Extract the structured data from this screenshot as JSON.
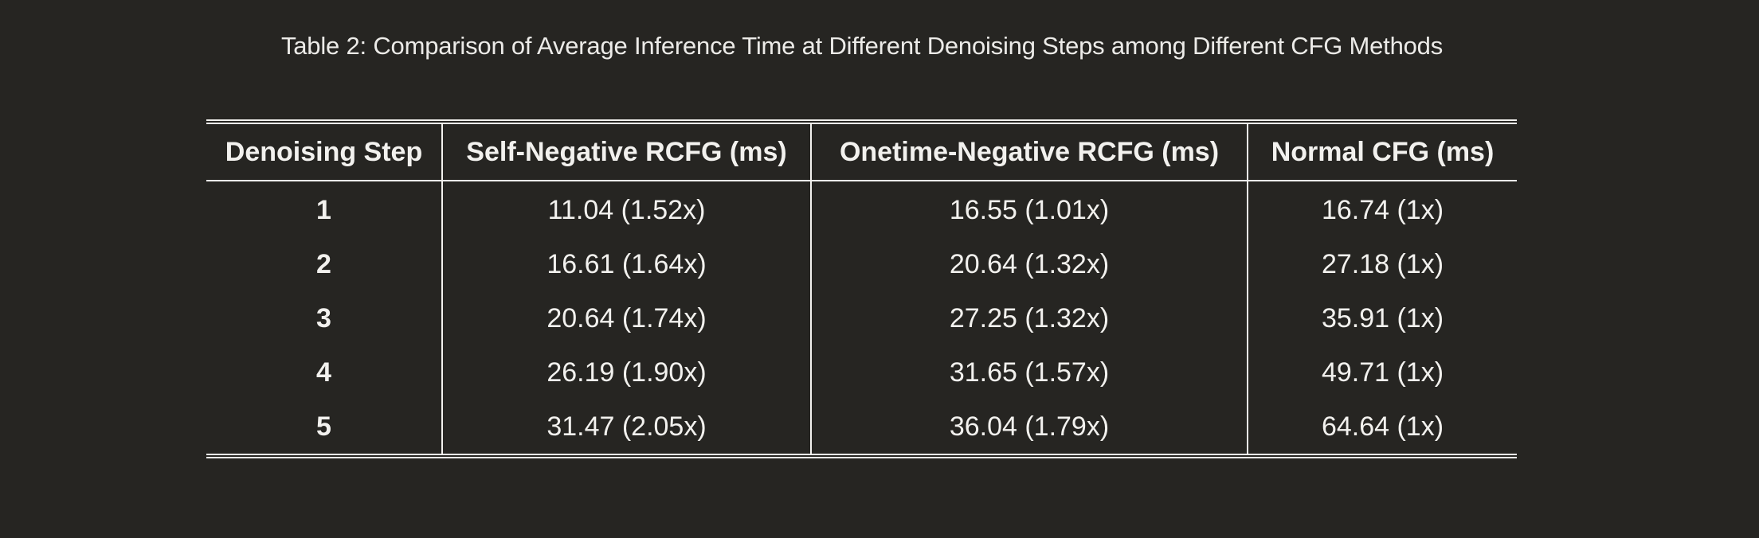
{
  "caption": "Table 2: Comparison of Average Inference Time at Different Denoising Steps among Different CFG Methods",
  "table": {
    "headers": [
      "Denoising Step",
      "Self-Negative RCFG (ms)",
      "Onetime-Negative RCFG (ms)",
      "Normal CFG (ms)"
    ],
    "rows": [
      [
        "1",
        "11.04 (1.52x)",
        "16.55 (1.01x)",
        "16.74 (1x)"
      ],
      [
        "2",
        "16.61 (1.64x)",
        "20.64 (1.32x)",
        "27.18 (1x)"
      ],
      [
        "3",
        "20.64 (1.74x)",
        "27.25 (1.32x)",
        "35.91 (1x)"
      ],
      [
        "4",
        "26.19 (1.90x)",
        "31.65 (1.57x)",
        "49.71 (1x)"
      ],
      [
        "5",
        "31.47 (2.05x)",
        "36.04 (1.79x)",
        "64.64 (1x)"
      ]
    ]
  }
}
